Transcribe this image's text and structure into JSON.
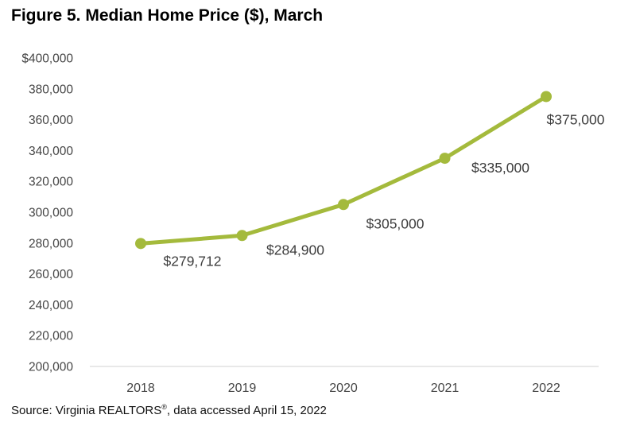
{
  "figure": {
    "title": "Figure 5. Median Home Price ($), March",
    "source": {
      "prefix": "Source: Virginia REALTORS",
      "reg_mark": "®",
      "suffix": ", data accessed April 15, 2022"
    }
  },
  "chart_data": {
    "type": "line",
    "title": "Figure 5. Median Home Price ($), March",
    "categories": [
      "2018",
      "2019",
      "2020",
      "2021",
      "2022"
    ],
    "series": [
      {
        "name": "Median Home Price ($), March",
        "values": [
          279712,
          284900,
          305000,
          335000,
          375000
        ],
        "data_labels": [
          "$279,712",
          "$284,900",
          "$305,000",
          "$335,000",
          "$375,000"
        ],
        "color": "#a4ba3c"
      }
    ],
    "ylim": [
      200000,
      400000
    ],
    "y_tick_interval": 20000,
    "y_ticks": [
      {
        "value": 400000,
        "label": "$400,000"
      },
      {
        "value": 380000,
        "label": "380,000"
      },
      {
        "value": 360000,
        "label": "360,000"
      },
      {
        "value": 340000,
        "label": "340,000"
      },
      {
        "value": 320000,
        "label": "320,000"
      },
      {
        "value": 300000,
        "label": "300,000"
      },
      {
        "value": 280000,
        "label": "280,000"
      },
      {
        "value": 260000,
        "label": "260,000"
      },
      {
        "value": 240000,
        "label": "240,000"
      },
      {
        "value": 220000,
        "label": "220,000"
      },
      {
        "value": 200000,
        "label": "200,000"
      }
    ],
    "grid": "off",
    "legend": "none",
    "marker": "circle",
    "axis_line_color": "#d9d9d9",
    "text_color": "#454545",
    "source_note": "Source: Virginia REALTORS®, data accessed April 15, 2022"
  }
}
